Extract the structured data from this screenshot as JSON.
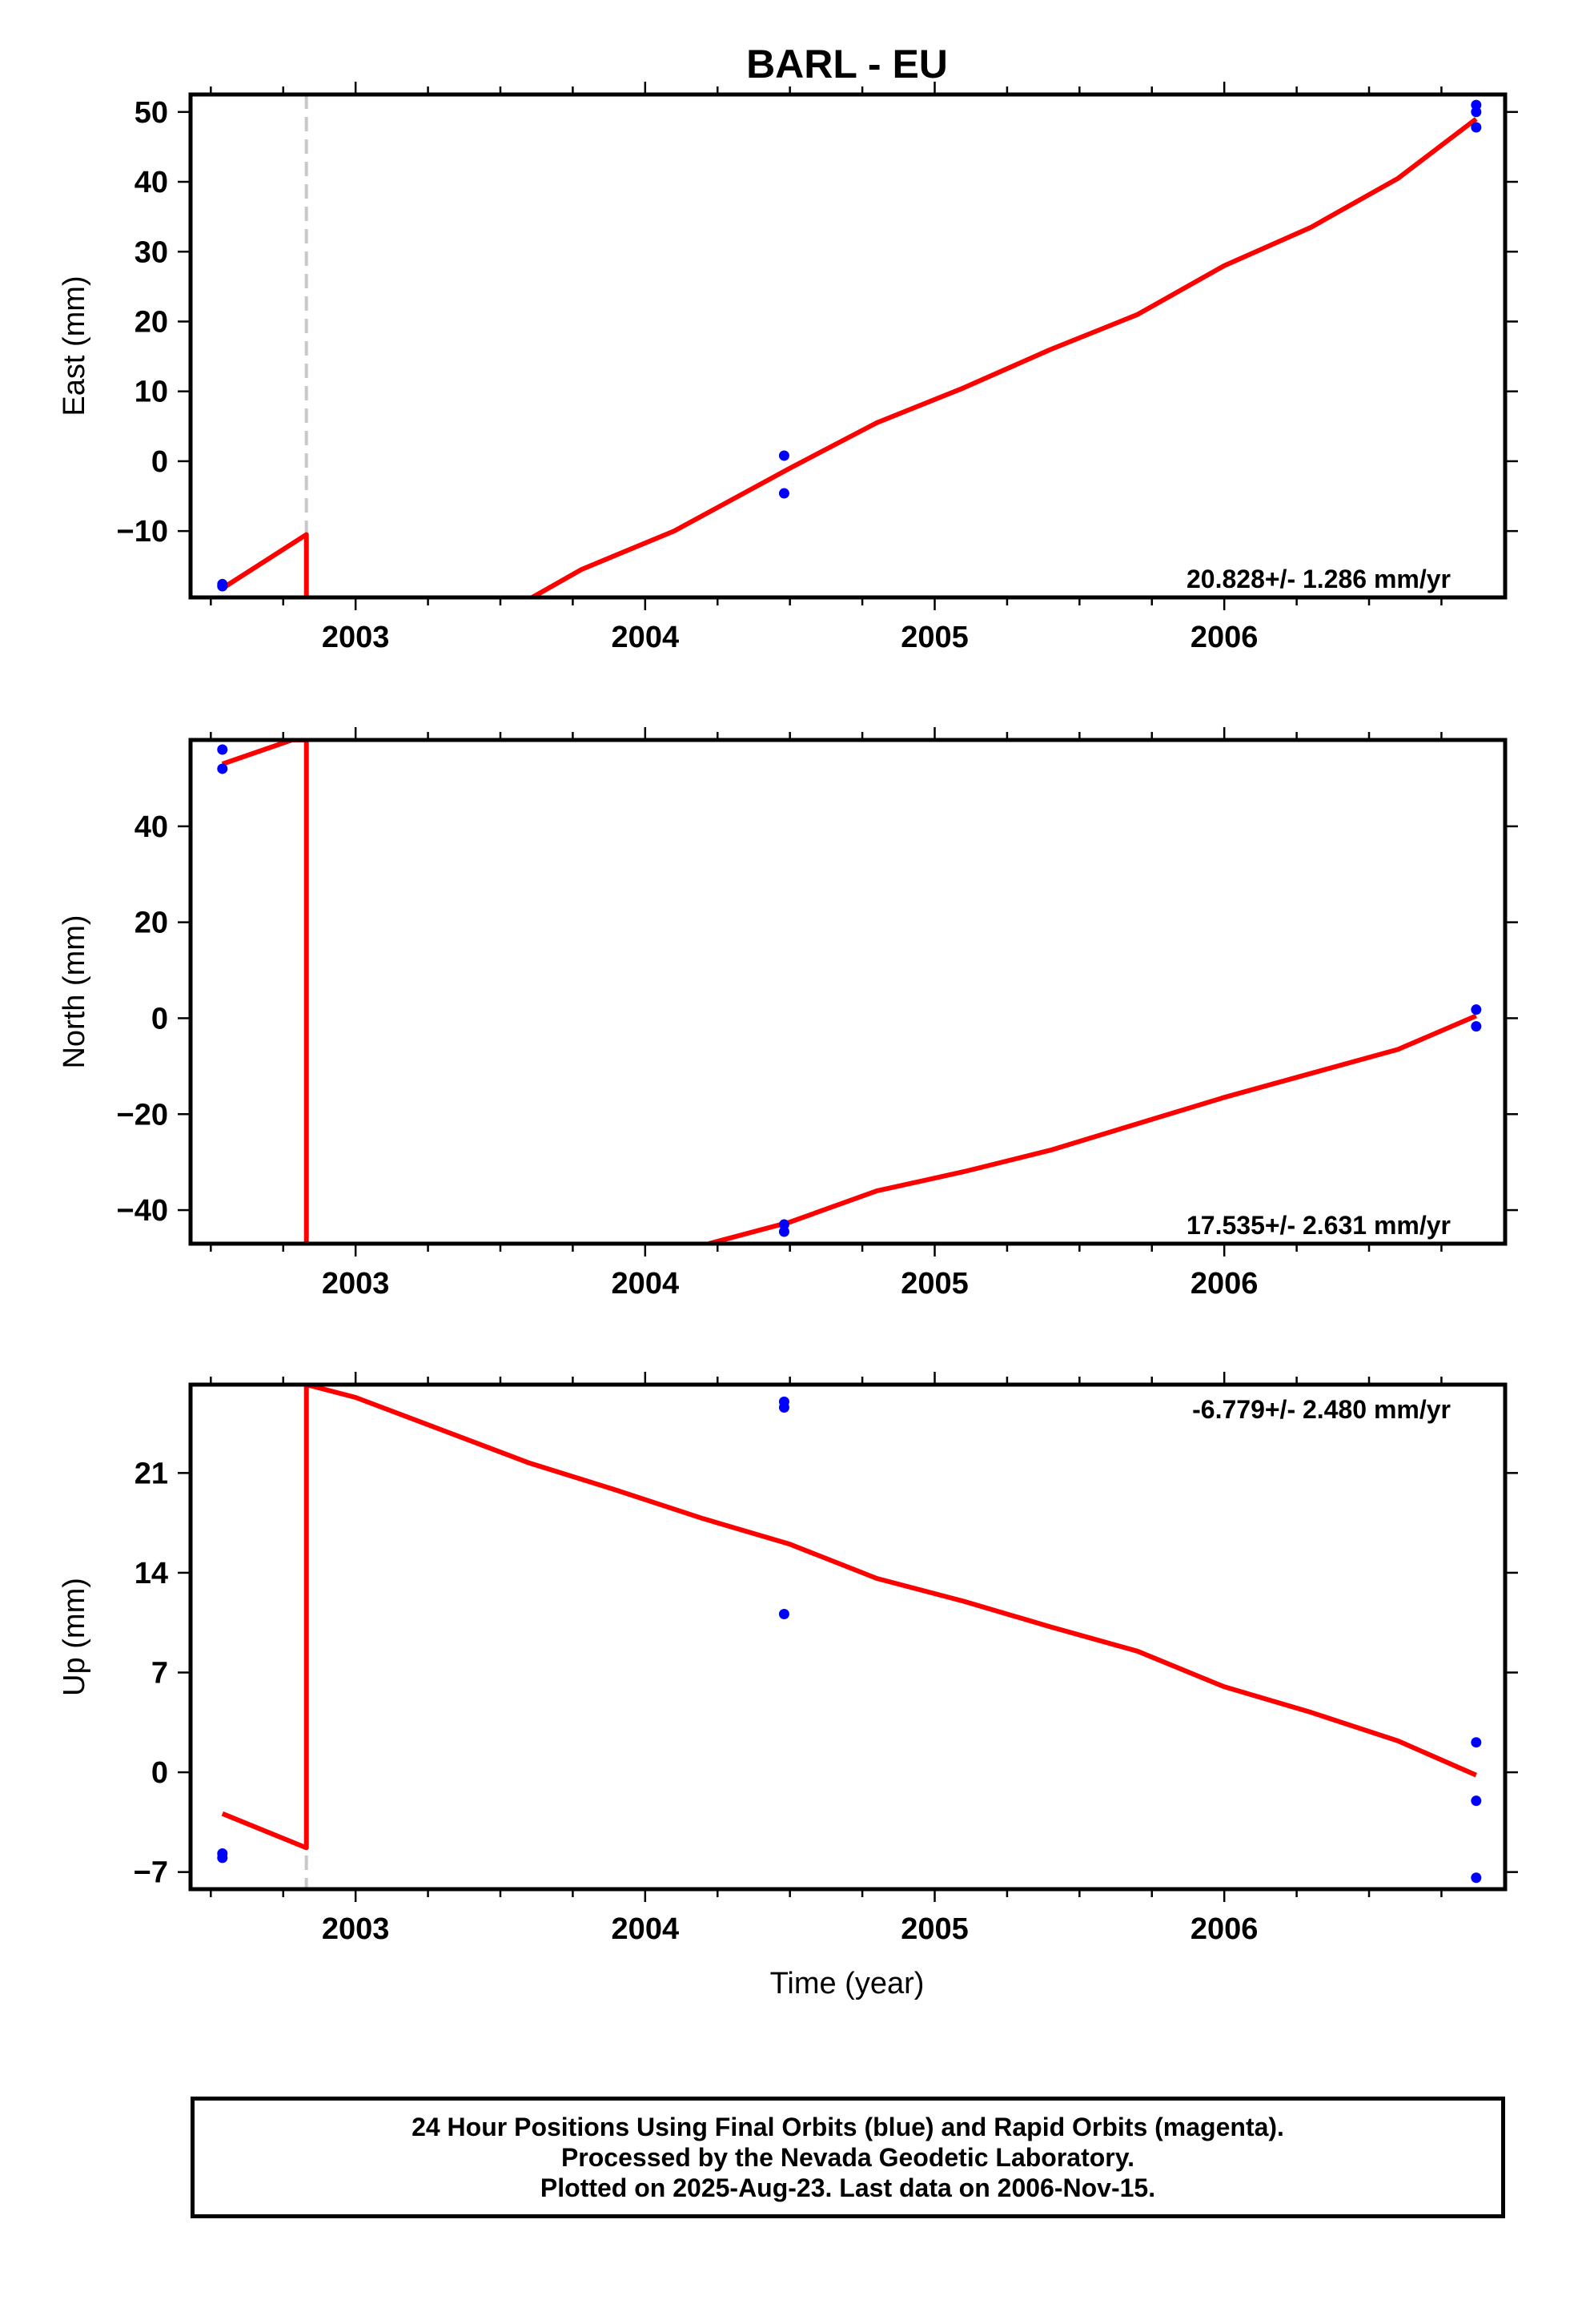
{
  "title": "BARL - EU",
  "xlabel": "Time (year)",
  "colors": {
    "final": "#0000ff",
    "model": "#ff0000",
    "break": "#c8c8c8",
    "axis": "#000000"
  },
  "footer": {
    "line1": "24 Hour Positions Using Final Orbits (blue) and Rapid Orbits (magenta).",
    "line2": "Processed by the Nevada Geodetic Laboratory.",
    "line3": "Plotted on 2025-Aug-23. Last data on 2006-Nov-15."
  },
  "chart_data": [
    {
      "type": "scatter",
      "component": "east",
      "ylabel": "East (mm)",
      "velocity": "20.828+/- 1.286 mm/yr",
      "velocity_position": "bottom-right",
      "xlim": [
        2002.43,
        2006.97
      ],
      "ylim": [
        -19.5,
        52.5
      ],
      "yticks": [
        -10,
        0,
        10,
        20,
        30,
        40,
        50
      ],
      "xticks": [
        2003,
        2004,
        2005,
        2006
      ],
      "break_epochs": [
        2002.83
      ],
      "points": [
        {
          "x": 2002.54,
          "y": -17.6
        },
        {
          "x": 2002.54,
          "y": -17.9
        },
        {
          "x": 2004.48,
          "y": 0.8
        },
        {
          "x": 2004.48,
          "y": -4.6
        },
        {
          "x": 2006.87,
          "y": 51.0
        },
        {
          "x": 2006.87,
          "y": 50.0
        },
        {
          "x": 2006.87,
          "y": 47.8
        }
      ],
      "model_segments": [
        [
          [
            2002.54,
            -18.2
          ],
          [
            2002.83,
            -10.5
          ],
          [
            2002.83,
            -19.5
          ]
        ],
        [
          [
            2003.61,
            -19.5
          ],
          [
            2003.78,
            -15.5
          ],
          [
            2004.1,
            -10
          ],
          [
            2004.5,
            -1
          ],
          [
            2004.8,
            5.5
          ],
          [
            2005.1,
            10.5
          ],
          [
            2005.4,
            16
          ],
          [
            2005.7,
            21
          ],
          [
            2006.0,
            28
          ],
          [
            2006.3,
            33.5
          ],
          [
            2006.6,
            40.5
          ],
          [
            2006.87,
            49.0
          ]
        ]
      ]
    },
    {
      "type": "scatter",
      "component": "north",
      "ylabel": "North (mm)",
      "velocity": "17.535+/- 2.631 mm/yr",
      "velocity_position": "bottom-right",
      "xlim": [
        2002.43,
        2006.97
      ],
      "ylim": [
        -47,
        58
      ],
      "yticks": [
        -40,
        -20,
        0,
        20,
        40
      ],
      "xticks": [
        2003,
        2004,
        2005,
        2006
      ],
      "break_epochs": [
        2002.83
      ],
      "points": [
        {
          "x": 2002.54,
          "y": 56.0
        },
        {
          "x": 2002.54,
          "y": 52.0
        },
        {
          "x": 2004.48,
          "y": -43.0
        },
        {
          "x": 2004.48,
          "y": -44.5
        },
        {
          "x": 2006.87,
          "y": 1.8
        },
        {
          "x": 2006.87,
          "y": -1.7
        }
      ],
      "model_segments": [
        [
          [
            2002.54,
            53.0
          ],
          [
            2002.78,
            58.0
          ],
          [
            2002.83,
            58.0
          ],
          [
            2002.83,
            -47.0
          ]
        ],
        [
          [
            2004.22,
            -47.0
          ],
          [
            2004.5,
            -42.5
          ],
          [
            2004.8,
            -36
          ],
          [
            2005.1,
            -32
          ],
          [
            2005.4,
            -27.5
          ],
          [
            2005.7,
            -22
          ],
          [
            2006.0,
            -16.5
          ],
          [
            2006.3,
            -11.5
          ],
          [
            2006.6,
            -6.5
          ],
          [
            2006.87,
            0.5
          ]
        ]
      ]
    },
    {
      "type": "scatter",
      "component": "up",
      "ylabel": "Up (mm)",
      "velocity": "-6.779+/- 2.480 mm/yr",
      "velocity_position": "top-right",
      "xlim": [
        2002.43,
        2006.97
      ],
      "ylim": [
        -8.2,
        27.2
      ],
      "yticks": [
        -7,
        0,
        7,
        14,
        21
      ],
      "xticks": [
        2003,
        2004,
        2005,
        2006
      ],
      "break_epochs": [
        2002.83
      ],
      "points": [
        {
          "x": 2002.54,
          "y": -5.7
        },
        {
          "x": 2002.54,
          "y": -6.0
        },
        {
          "x": 2004.48,
          "y": 26.0
        },
        {
          "x": 2004.48,
          "y": 25.6
        },
        {
          "x": 2004.48,
          "y": 11.1
        },
        {
          "x": 2006.87,
          "y": 2.1
        },
        {
          "x": 2006.87,
          "y": -2.0
        },
        {
          "x": 2006.87,
          "y": -7.4
        }
      ],
      "model_segments": [
        [
          [
            2002.54,
            -2.9
          ],
          [
            2002.83,
            -5.3
          ],
          [
            2002.83,
            27.2
          ]
        ],
        [
          [
            2002.83,
            27.2
          ],
          [
            2003.0,
            26.3
          ],
          [
            2003.3,
            24.0
          ],
          [
            2003.6,
            21.7
          ],
          [
            2003.9,
            19.8
          ],
          [
            2004.2,
            17.8
          ],
          [
            2004.5,
            16.0
          ],
          [
            2004.8,
            13.6
          ],
          [
            2005.1,
            12.0
          ],
          [
            2005.4,
            10.2
          ],
          [
            2005.7,
            8.5
          ],
          [
            2006.0,
            6.0
          ],
          [
            2006.3,
            4.2
          ],
          [
            2006.6,
            2.2
          ],
          [
            2006.87,
            -0.2
          ]
        ]
      ]
    }
  ]
}
